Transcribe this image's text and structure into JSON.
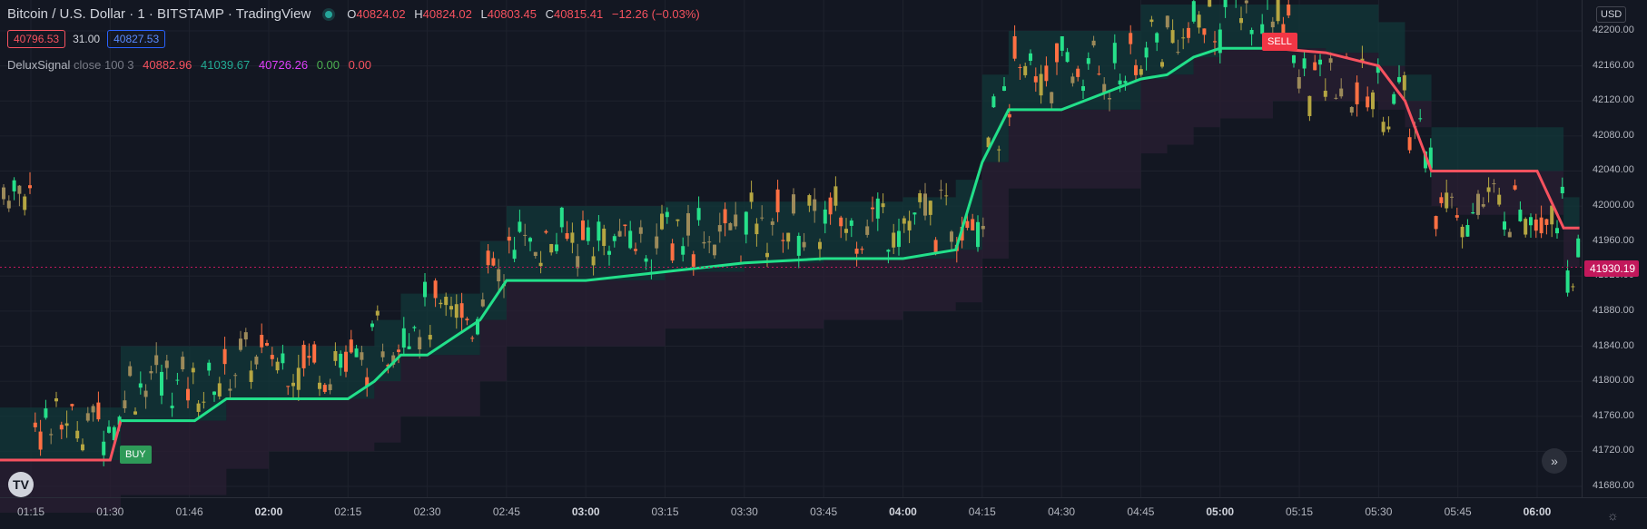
{
  "header": {
    "symbol_title": "Bitcoin / U.S. Dollar · 1 · BITSTAMP · TradingView",
    "ohlc": {
      "o_label": "O",
      "o": "40824.02",
      "h_label": "H",
      "h": "40824.02",
      "l_label": "L",
      "l": "40803.45",
      "c_label": "C",
      "c": "40815.41",
      "change": "−12.26 (−0.03%)"
    },
    "bid": "40796.53",
    "spread": "31.00",
    "ask": "40827.53"
  },
  "indicator": {
    "name": "DeluxSignal",
    "params": "close 100 3",
    "v1": "40882.96",
    "v2": "41039.67",
    "v3": "40726.26",
    "v4": "0.00",
    "v5": "0.00",
    "colors": {
      "v1": "#f7525f",
      "v2": "#22ab94",
      "v3": "#e040fb",
      "v4": "#4caf50",
      "v5": "#f7525f"
    }
  },
  "currency": "USD",
  "last_price": "41930.19",
  "markers": {
    "buy": "BUY",
    "sell": "SELL"
  },
  "y_ticks": [
    "42200.00",
    "42160.00",
    "42120.00",
    "42080.00",
    "42040.00",
    "42000.00",
    "41960.00",
    "41920.00",
    "41880.00",
    "41840.00",
    "41800.00",
    "41760.00",
    "41720.00",
    "41680.00"
  ],
  "x_ticks": [
    {
      "label": "01:15",
      "bold": false
    },
    {
      "label": "01:30",
      "bold": false
    },
    {
      "label": "01:46",
      "bold": false
    },
    {
      "label": "02:00",
      "bold": true
    },
    {
      "label": "02:15",
      "bold": false
    },
    {
      "label": "02:30",
      "bold": false
    },
    {
      "label": "02:45",
      "bold": false
    },
    {
      "label": "03:00",
      "bold": true
    },
    {
      "label": "03:15",
      "bold": false
    },
    {
      "label": "03:30",
      "bold": false
    },
    {
      "label": "03:45",
      "bold": false
    },
    {
      "label": "04:00",
      "bold": true
    },
    {
      "label": "04:15",
      "bold": false
    },
    {
      "label": "04:30",
      "bold": false
    },
    {
      "label": "04:45",
      "bold": false
    },
    {
      "label": "05:00",
      "bold": true
    },
    {
      "label": "05:15",
      "bold": false
    },
    {
      "label": "05:30",
      "bold": false
    },
    {
      "label": "05:45",
      "bold": false
    },
    {
      "label": "06:00",
      "bold": true
    }
  ],
  "colors": {
    "bg": "#131722",
    "up": "#26e08a",
    "down": "#ff7043",
    "signal_up": "#22e08a",
    "signal_down": "#f7525f",
    "band_up": "#12383a",
    "band_down": "#2a1f33",
    "grid": "#1e222d"
  },
  "chart_data": {
    "type": "candlestick",
    "title": "Bitcoin / U.S. Dollar · 1 · BITSTAMP",
    "ylim": [
      41660,
      42230
    ],
    "signal_line": {
      "name": "DeluxSignal",
      "x": [
        "01:15",
        "01:30",
        "01:32",
        "01:46",
        "01:52",
        "02:00",
        "02:15",
        "02:20",
        "02:25",
        "02:30",
        "02:40",
        "02:45",
        "02:48",
        "03:00",
        "03:15",
        "03:30",
        "03:45",
        "04:00",
        "04:10",
        "04:15",
        "04:20",
        "04:30",
        "04:45",
        "04:50",
        "04:55",
        "05:00",
        "05:10",
        "05:20",
        "05:30",
        "05:35",
        "05:40",
        "05:45",
        "06:00",
        "06:05"
      ],
      "y": [
        41710,
        41710,
        41755,
        41755,
        41780,
        41780,
        41780,
        41800,
        41830,
        41830,
        41870,
        41915,
        41915,
        41915,
        41925,
        41935,
        41940,
        41940,
        41950,
        42050,
        42110,
        42110,
        42145,
        42150,
        42170,
        42180,
        42180,
        42175,
        42160,
        42120,
        42040,
        42040,
        42040,
        41975
      ],
      "up_until": "05:10"
    },
    "band_upper": [
      41770,
      41770,
      41840,
      41840,
      41840,
      41840,
      41840,
      41870,
      41900,
      41900,
      41960,
      42000,
      42000,
      42000,
      42005,
      42005,
      42005,
      42010,
      42030,
      42150,
      42200,
      42200,
      42230,
      42230,
      42230,
      42230,
      42230,
      42230,
      42210,
      42150,
      42090,
      42090,
      42090,
      42010
    ],
    "band_lower": [
      41650,
      41650,
      41670,
      41670,
      41700,
      41720,
      41720,
      41730,
      41760,
      41760,
      41800,
      41840,
      41840,
      41840,
      41860,
      41860,
      41870,
      41880,
      41890,
      41940,
      42020,
      42020,
      42060,
      42070,
      42090,
      42100,
      42120,
      42120,
      42110,
      42090,
      42000,
      41990,
      41990,
      41930
    ],
    "last_price": 41930.19,
    "buy_signal_x": "01:32",
    "sell_signal_x": "05:13"
  }
}
